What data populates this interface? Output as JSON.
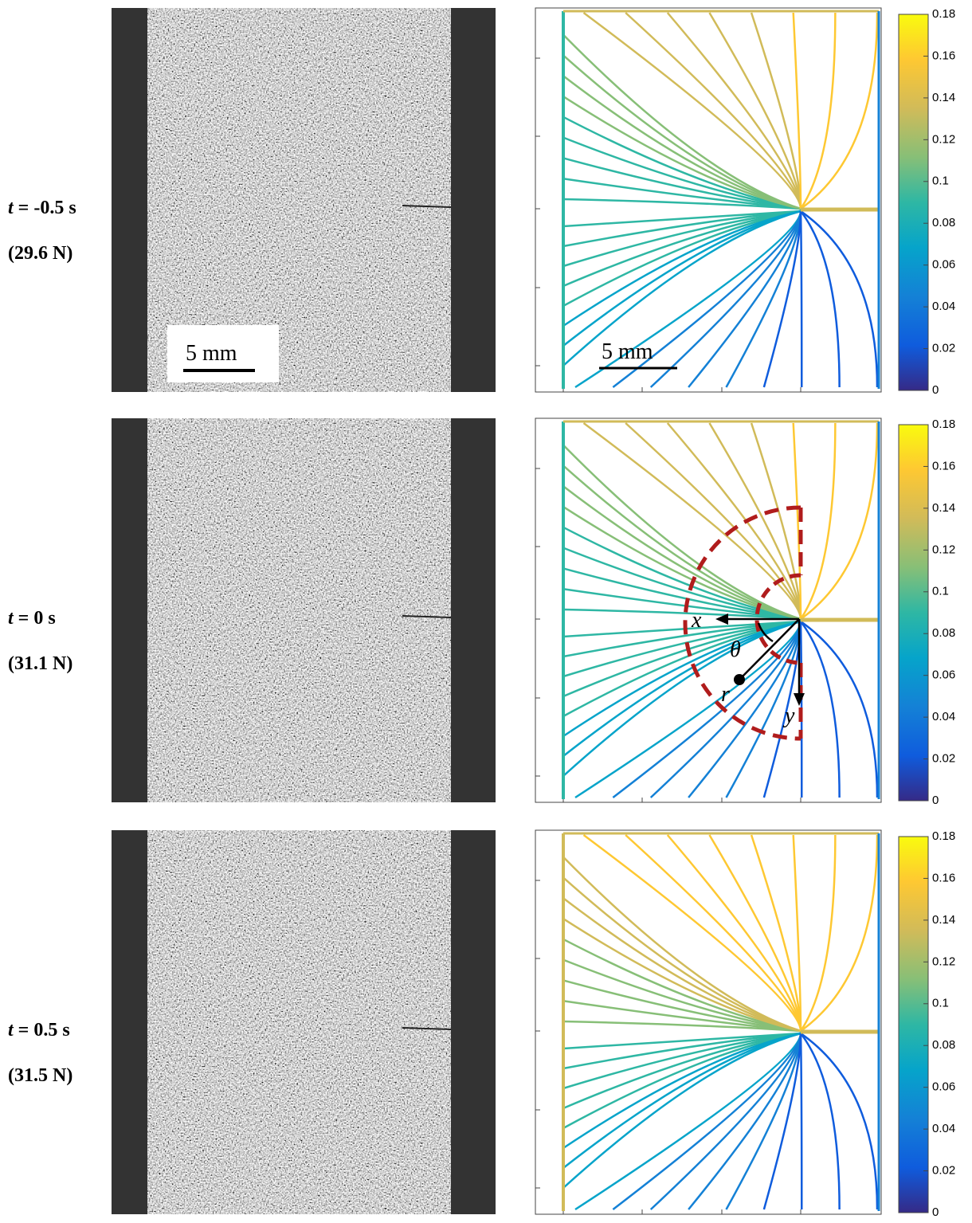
{
  "rows": [
    {
      "time_var": "t",
      "time": "= -0.5 s",
      "force": "(29.6 N)",
      "image_scale": "5 mm",
      "contour_scale": "5 mm"
    },
    {
      "time_var": "t",
      "time": "= 0 s",
      "force": "(31.1 N)"
    },
    {
      "time_var": "t",
      "time": "= 0.5 s",
      "force": "(31.5 N)"
    }
  ],
  "annotation": {
    "x": "x",
    "y": "y",
    "theta": "θ",
    "r": "r"
  },
  "colorbar": {
    "ticks": [
      0,
      0.02,
      0.04,
      0.06,
      0.08,
      0.1,
      0.12,
      0.14,
      0.16,
      0.18
    ]
  }
}
